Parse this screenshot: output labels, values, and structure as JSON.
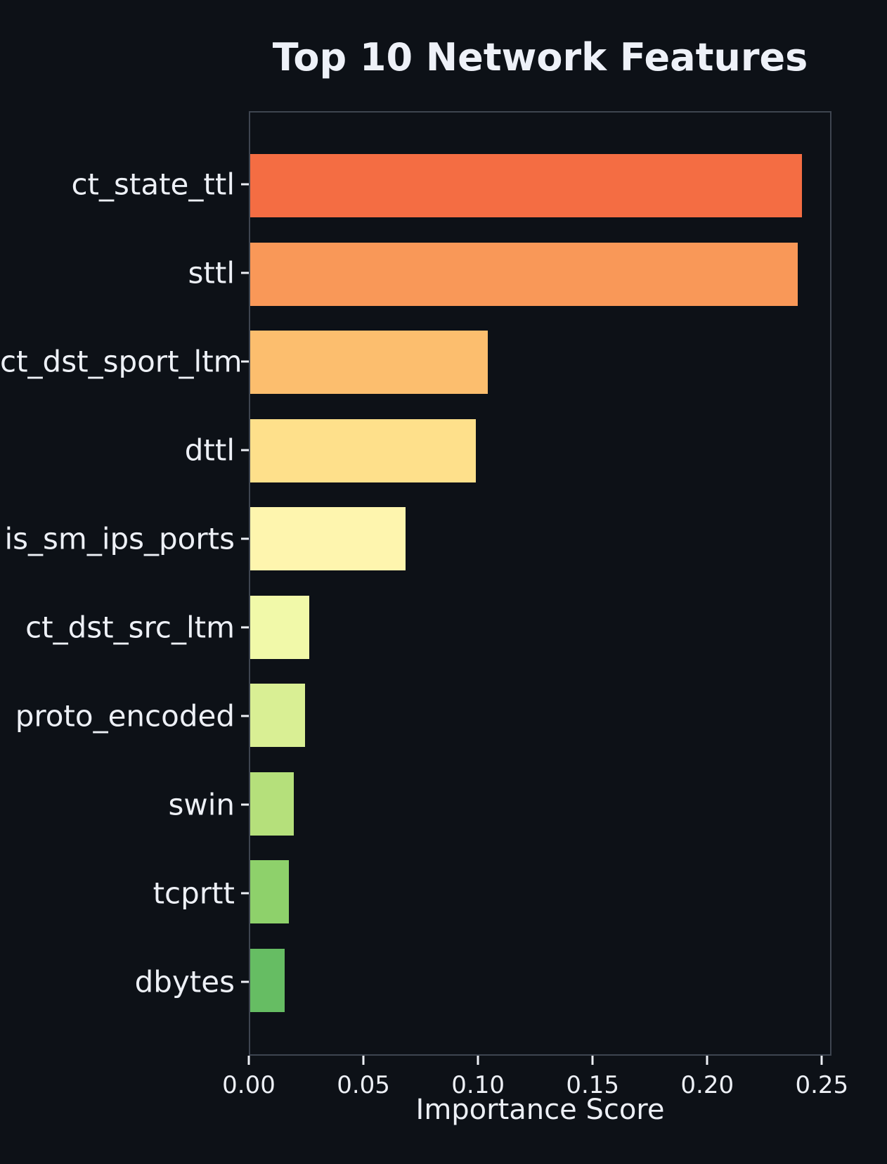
{
  "chart_data": {
    "type": "bar",
    "orientation": "horizontal",
    "title": "Top 10 Network Features",
    "xlabel": "Importance Score",
    "categories": [
      "ct_state_ttl",
      "sttl",
      "ct_dst_sport_ltm",
      "dttl",
      "is_sm_ips_ports",
      "ct_dst_src_ltm",
      "proto_encoded",
      "swin",
      "tcprtt",
      "dbytes"
    ],
    "values": [
      0.242,
      0.24,
      0.104,
      0.099,
      0.068,
      0.026,
      0.024,
      0.019,
      0.017,
      0.015
    ],
    "bar_colors": [
      "#f46d43",
      "#f99858",
      "#fcbe6e",
      "#fee08b",
      "#fef5ae",
      "#f1f9a9",
      "#d9ef94",
      "#b5e07b",
      "#8ed16b",
      "#66bd63"
    ],
    "xlim": [
      0,
      0.2542
    ],
    "xticks": [
      {
        "value": 0.0,
        "label": "0.00"
      },
      {
        "value": 0.05,
        "label": "0.05"
      },
      {
        "value": 0.1,
        "label": "0.10"
      },
      {
        "value": 0.15,
        "label": "0.15"
      },
      {
        "value": 0.2,
        "label": "0.20"
      },
      {
        "value": 0.25,
        "label": "0.25"
      }
    ],
    "grid": false,
    "legend": false,
    "background_color": "#0d1117",
    "spine_color": "#3e4550",
    "text_color": "#edf0f6"
  }
}
